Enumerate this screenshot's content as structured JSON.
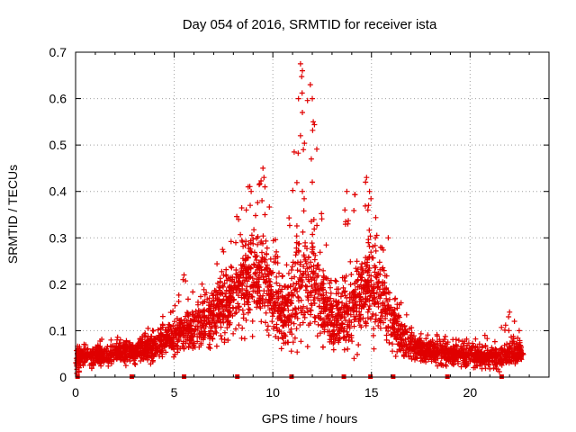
{
  "chart_data": {
    "type": "scatter",
    "title": "Day 054 of 2016, SRMTID for receiver ista",
    "xlabel": "GPS time / hours",
    "ylabel": "SRMTID / TECUs",
    "xlim": [
      0,
      24
    ],
    "ylim": [
      0,
      0.7
    ],
    "xticks": [
      0,
      5,
      10,
      15,
      20
    ],
    "yticks": [
      0,
      0.1,
      0.2,
      0.3,
      0.4,
      0.5,
      0.6,
      0.7
    ],
    "xtick_labels": [
      "0",
      "5",
      "10",
      "15",
      "20"
    ],
    "ytick_labels": [
      "0",
      "0.1",
      "0.2",
      "0.3",
      "0.4",
      "0.5",
      "0.6",
      "0.7"
    ],
    "grid": true,
    "marker": "+",
    "color": "#e00000",
    "data_gap_markers_x": [
      0.1,
      2.85,
      5.5,
      8.2,
      10.95,
      13.6,
      14.95,
      16.1,
      18.85,
      21.6
    ],
    "envelope": [
      {
        "x": 0.0,
        "median": 0.04,
        "spread": 0.02,
        "max": 0.07
      },
      {
        "x": 1.0,
        "median": 0.045,
        "spread": 0.02,
        "max": 0.08
      },
      {
        "x": 2.0,
        "median": 0.05,
        "spread": 0.02,
        "max": 0.085
      },
      {
        "x": 3.0,
        "median": 0.055,
        "spread": 0.02,
        "max": 0.095
      },
      {
        "x": 4.0,
        "median": 0.065,
        "spread": 0.025,
        "max": 0.11
      },
      {
        "x": 5.0,
        "median": 0.085,
        "spread": 0.03,
        "max": 0.16
      },
      {
        "x": 5.5,
        "median": 0.1,
        "spread": 0.035,
        "max": 0.22
      },
      {
        "x": 6.5,
        "median": 0.115,
        "spread": 0.04,
        "max": 0.2
      },
      {
        "x": 7.5,
        "median": 0.15,
        "spread": 0.05,
        "max": 0.27
      },
      {
        "x": 8.5,
        "median": 0.2,
        "spread": 0.07,
        "max": 0.41
      },
      {
        "x": 9.5,
        "median": 0.22,
        "spread": 0.09,
        "max": 0.45
      },
      {
        "x": 10.5,
        "median": 0.13,
        "spread": 0.05,
        "max": 0.23
      },
      {
        "x": 11.5,
        "median": 0.22,
        "spread": 0.1,
        "max": 0.68
      },
      {
        "x": 12.0,
        "median": 0.2,
        "spread": 0.1,
        "max": 0.6
      },
      {
        "x": 13.0,
        "median": 0.12,
        "spread": 0.05,
        "max": 0.2
      },
      {
        "x": 14.0,
        "median": 0.14,
        "spread": 0.06,
        "max": 0.4
      },
      {
        "x": 14.8,
        "median": 0.2,
        "spread": 0.08,
        "max": 0.43
      },
      {
        "x": 15.5,
        "median": 0.17,
        "spread": 0.07,
        "max": 0.3
      },
      {
        "x": 16.5,
        "median": 0.08,
        "spread": 0.03,
        "max": 0.16
      },
      {
        "x": 17.5,
        "median": 0.06,
        "spread": 0.02,
        "max": 0.1
      },
      {
        "x": 18.5,
        "median": 0.05,
        "spread": 0.02,
        "max": 0.09
      },
      {
        "x": 19.5,
        "median": 0.045,
        "spread": 0.02,
        "max": 0.08
      },
      {
        "x": 20.5,
        "median": 0.045,
        "spread": 0.02,
        "max": 0.09
      },
      {
        "x": 21.5,
        "median": 0.04,
        "spread": 0.02,
        "max": 0.1
      },
      {
        "x": 22.0,
        "median": 0.05,
        "spread": 0.02,
        "max": 0.14
      },
      {
        "x": 22.7,
        "median": 0.05,
        "spread": 0.02,
        "max": 0.12
      }
    ],
    "peaks": [
      {
        "x": 11.4,
        "y": 0.675
      },
      {
        "x": 11.5,
        "y": 0.66
      },
      {
        "x": 11.9,
        "y": 0.63
      },
      {
        "x": 11.3,
        "y": 0.6
      },
      {
        "x": 12.0,
        "y": 0.6
      },
      {
        "x": 11.5,
        "y": 0.57
      },
      {
        "x": 12.05,
        "y": 0.55
      },
      {
        "x": 11.4,
        "y": 0.52
      },
      {
        "x": 11.55,
        "y": 0.49
      },
      {
        "x": 11.95,
        "y": 0.47
      },
      {
        "x": 12.0,
        "y": 0.42
      },
      {
        "x": 11.5,
        "y": 0.4
      },
      {
        "x": 9.5,
        "y": 0.45
      },
      {
        "x": 9.55,
        "y": 0.43
      },
      {
        "x": 8.75,
        "y": 0.41
      },
      {
        "x": 8.9,
        "y": 0.4
      },
      {
        "x": 9.6,
        "y": 0.41
      },
      {
        "x": 9.45,
        "y": 0.38
      },
      {
        "x": 8.85,
        "y": 0.37
      },
      {
        "x": 8.65,
        "y": 0.36
      },
      {
        "x": 9.6,
        "y": 0.35
      },
      {
        "x": 14.75,
        "y": 0.43
      },
      {
        "x": 14.7,
        "y": 0.42
      },
      {
        "x": 14.9,
        "y": 0.4
      },
      {
        "x": 13.75,
        "y": 0.4
      },
      {
        "x": 14.85,
        "y": 0.37
      },
      {
        "x": 13.65,
        "y": 0.36
      },
      {
        "x": 13.8,
        "y": 0.33
      },
      {
        "x": 15.85,
        "y": 0.3
      },
      {
        "x": 15.2,
        "y": 0.3
      },
      {
        "x": 7.45,
        "y": 0.275
      },
      {
        "x": 7.5,
        "y": 0.27
      },
      {
        "x": 5.5,
        "y": 0.22
      },
      {
        "x": 5.45,
        "y": 0.21
      },
      {
        "x": 22.0,
        "y": 0.14
      },
      {
        "x": 21.95,
        "y": 0.13
      },
      {
        "x": 20.75,
        "y": 0.09
      },
      {
        "x": 16.5,
        "y": 0.16
      }
    ],
    "series": [
      {
        "name": "SRMTID (receiver ista)",
        "samples_per_hour": 140,
        "seed": 54
      }
    ]
  }
}
